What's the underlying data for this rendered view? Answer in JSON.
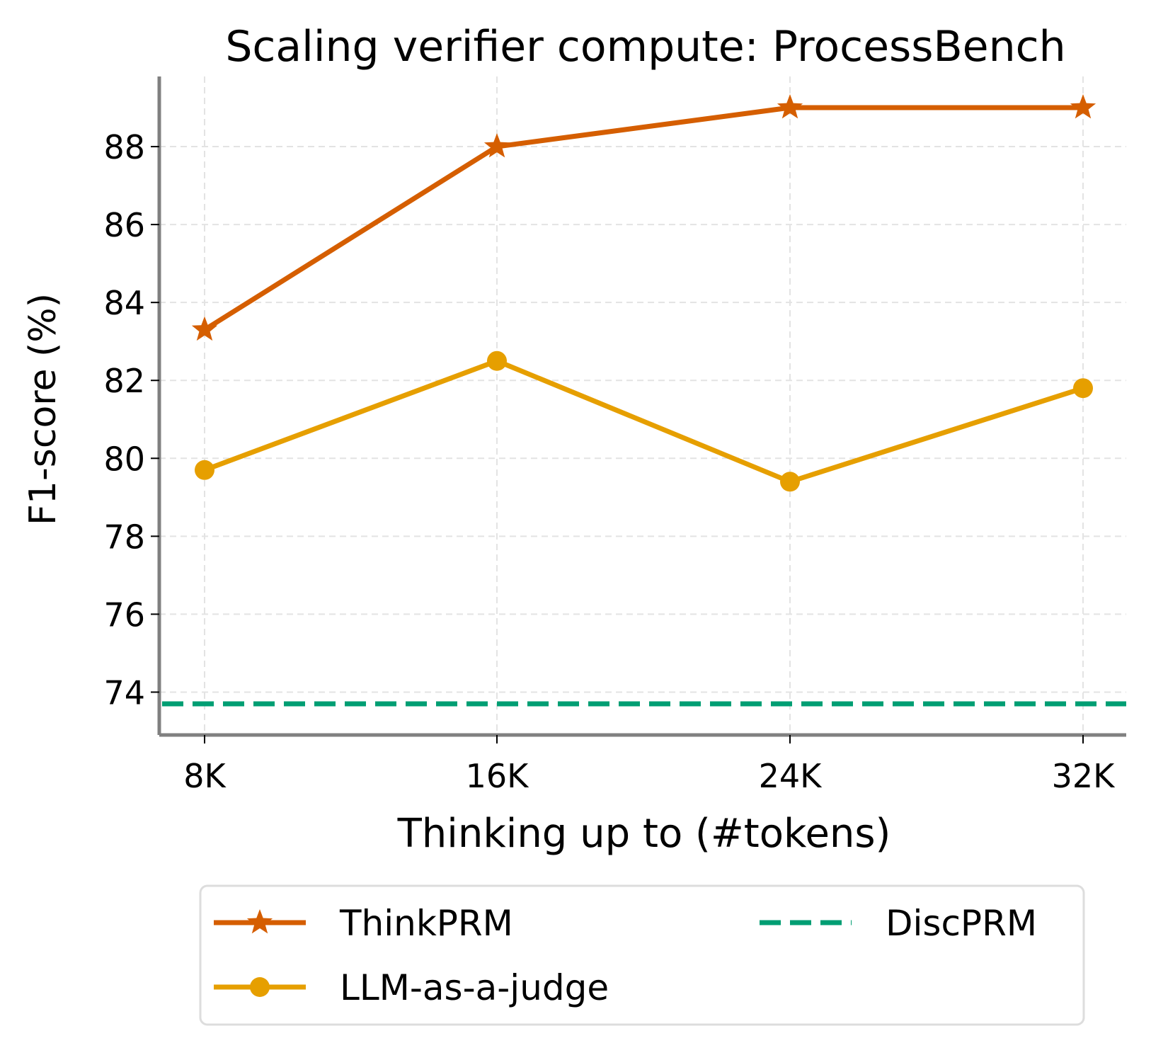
{
  "chart_data": {
    "type": "line",
    "title": "Scaling verifier compute: ProcessBench",
    "xlabel": "Thinking up to (#tokens)",
    "ylabel": "F1-score (%)",
    "categories": [
      "8K",
      "16K",
      "24K",
      "32K"
    ],
    "yticks": [
      74,
      76,
      78,
      80,
      82,
      84,
      86,
      88
    ],
    "ylim": [
      72.9,
      89.8
    ],
    "grid": true,
    "legend_position": "bottom",
    "series": [
      {
        "name": "ThinkPRM",
        "values": [
          83.3,
          88.0,
          89.0,
          89.0
        ],
        "color": "#d55e00",
        "marker": "star",
        "style": "solid"
      },
      {
        "name": "LLM-as-a-judge",
        "values": [
          79.7,
          82.5,
          79.4,
          81.8
        ],
        "color": "#e69f00",
        "marker": "circle",
        "style": "solid"
      },
      {
        "name": "DiscPRM",
        "value": 73.7,
        "color": "#009e73",
        "marker": "none",
        "style": "dashed"
      }
    ]
  }
}
